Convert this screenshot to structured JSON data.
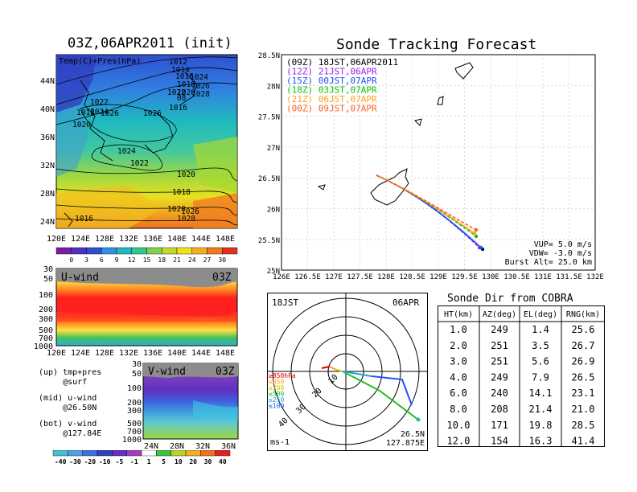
{
  "colors": {
    "vup_line": "#000000",
    "runs": [
      "#000000",
      "#a020f0",
      "#2050ff",
      "#10c000",
      "#ffa020",
      "#ff6020"
    ]
  },
  "left_map": {
    "title": "03Z,06APR2011 (init)",
    "legend_text": "Temp(C)+Pres(hPa)",
    "lat_labels": [
      "44N",
      "40N",
      "36N",
      "32N",
      "28N",
      "24N"
    ],
    "lon_labels": [
      "120E",
      "124E",
      "128E",
      "132E",
      "136E",
      "140E",
      "144E",
      "148E"
    ],
    "isobar_labels": [
      "1012",
      "1014",
      "1016",
      "1018",
      "1020",
      "1022",
      "1024",
      "1026",
      "1028",
      "08",
      "1016",
      "1018",
      "1020",
      "1022",
      "1024",
      "1026",
      "1026",
      "1024",
      "1022",
      "1020",
      "1018",
      "1020",
      "1026",
      "1028",
      "1016"
    ],
    "colorbar_ticks": [
      "0",
      "3",
      "6",
      "9",
      "12",
      "15",
      "18",
      "21",
      "24",
      "27",
      "30"
    ]
  },
  "u_wind": {
    "title": "U-wind",
    "time": "03Z",
    "p_labels": [
      "30",
      "50",
      "100",
      "200",
      "300",
      "500",
      "700",
      "1000"
    ],
    "lon_labels": [
      "120E",
      "124E",
      "128E",
      "132E",
      "136E",
      "140E",
      "144E",
      "148E"
    ]
  },
  "v_wind": {
    "title": "V-wind",
    "time": "03Z",
    "p_labels": [
      "30",
      "50",
      "100",
      "200",
      "300",
      "500",
      "700",
      "1000"
    ],
    "lat_labels": [
      "24N",
      "28N",
      "32N",
      "36N"
    ],
    "colorbar_ticks": [
      "-40",
      "-30",
      "-20",
      "-10",
      "-5",
      "-1",
      "1",
      "5",
      "10",
      "20",
      "30",
      "40"
    ]
  },
  "captions": {
    "up": "(up) tmp+pres\n     @surf",
    "mid": "(mid) u-wind\n     @26.50N",
    "bot": "(bot) v-wind\n     @127.84E"
  },
  "track_map": {
    "title": "Sonde Tracking Forecast",
    "runs": [
      {
        "label": "(09Z) 18JST,06APR2011"
      },
      {
        "label": "(12Z) 21JST,06APR"
      },
      {
        "label": "(15Z) 00JST,07APR"
      },
      {
        "label": "(18Z) 03JST,07APR"
      },
      {
        "label": "(21Z) 06JST,07APR"
      },
      {
        "label": "(00Z) 09JST,07APR"
      }
    ],
    "params": [
      "VUP= 5.0 m/s",
      "VDW= -3.0 m/s",
      "Burst Alt= 25.0 km"
    ],
    "lat_labels": [
      "28.5N",
      "28N",
      "27.5N",
      "27N",
      "26.5N",
      "26N",
      "25.5N",
      "25N"
    ],
    "lon_labels": [
      "126E",
      "126.5E",
      "127E",
      "127.5E",
      "128E",
      "128.5E",
      "129E",
      "129.5E",
      "130E",
      "130.5E",
      "131E",
      "131.5E",
      "132E"
    ]
  },
  "polar": {
    "time": "18JST",
    "date": "06APR",
    "ring_labels": [
      "10",
      "20",
      "30",
      "40"
    ],
    "unit": "ms-1",
    "loc_lat": "26.5N",
    "loc_lon": "127.875E",
    "levels": [
      "≥850hPa",
      "≤850",
      "≤700",
      "≤500",
      "≤250",
      "≤100"
    ]
  },
  "chart_data": {
    "type": "table",
    "title": "Sonde Dir from COBRA",
    "columns": [
      "HT(km)",
      "AZ(deg)",
      "EL(deg)",
      "RNG(km)"
    ],
    "rows": [
      [
        "1.0",
        "249",
        "1.4",
        "25.6"
      ],
      [
        "2.0",
        "251",
        "3.5",
        "26.7"
      ],
      [
        "3.0",
        "251",
        "5.6",
        "26.9"
      ],
      [
        "4.0",
        "249",
        "7.9",
        "26.5"
      ],
      [
        "6.0",
        "240",
        "14.1",
        "23.1"
      ],
      [
        "8.0",
        "208",
        "21.4",
        "21.0"
      ],
      [
        "10.0",
        "171",
        "19.8",
        "28.5"
      ],
      [
        "12.0",
        "154",
        "16.3",
        "41.4"
      ]
    ]
  }
}
